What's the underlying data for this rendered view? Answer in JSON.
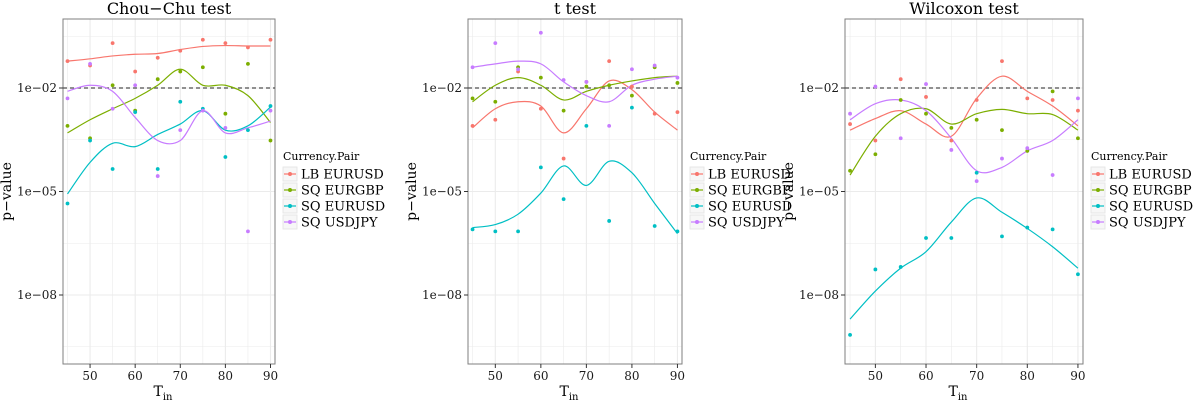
{
  "figure": {
    "background": "#ffffff",
    "panel_background": "#ffffff",
    "grid_color": "#ebebeb"
  },
  "chart_data": [
    {
      "type": "scatter",
      "title": "Chou−Chu test",
      "xlabel_main": "T",
      "xlabel_sub": "in",
      "ylabel": "p−value",
      "x_scale": "linear",
      "y_scale": "log10",
      "xlim": [
        44,
        91
      ],
      "ylim": [
        1e-10,
        1
      ],
      "x_ticks": [
        50,
        60,
        70,
        80,
        90
      ],
      "x_tick_labels": [
        "50",
        "60",
        "70",
        "80",
        "90"
      ],
      "y_ticks": [
        1e-08,
        1e-05,
        0.01
      ],
      "y_tick_labels": [
        "1e−08",
        "1e−05",
        "1e−02"
      ],
      "hline": 0.01,
      "grid": true,
      "legend_position": "right",
      "legend_title": "Currency.Pair",
      "series": [
        {
          "name": "LB EURUSD",
          "color": "#F8766D",
          "x": [
            45,
            50,
            55,
            60,
            65,
            70,
            75,
            80,
            85,
            90
          ],
          "points": [
            0.06,
            0.045,
            0.2,
            0.03,
            0.075,
            0.12,
            0.25,
            0.2,
            0.15,
            0.25
          ],
          "smooth": [
            0.06,
            0.07,
            0.085,
            0.095,
            0.1,
            0.13,
            0.16,
            0.17,
            0.165,
            0.165
          ]
        },
        {
          "name": "SQ EURGBP",
          "color": "#7CAE00",
          "x": [
            45,
            50,
            55,
            60,
            65,
            70,
            75,
            80,
            85,
            90
          ],
          "points": [
            0.0008,
            0.00035,
            0.012,
            0.0022,
            0.018,
            0.03,
            0.04,
            0.0018,
            0.05,
            0.0003
          ],
          "smooth": [
            0.0005,
            0.0012,
            0.0025,
            0.005,
            0.012,
            0.035,
            0.012,
            0.012,
            0.006,
            0.001
          ]
        },
        {
          "name": "SQ EURUSD",
          "color": "#00BFC4",
          "x": [
            45,
            50,
            55,
            60,
            65,
            70,
            75,
            80,
            85,
            90
          ],
          "points": [
            4.5e-06,
            0.0003,
            4.5e-05,
            0.002,
            4.5e-05,
            0.004,
            0.0025,
            0.0001,
            0.0006,
            0.003
          ],
          "smooth": [
            8.5e-06,
            7e-05,
            0.00025,
            0.0002,
            0.00045,
            0.0009,
            0.0022,
            0.0006,
            0.0008,
            0.0028
          ]
        },
        {
          "name": "SQ USDJPY",
          "color": "#C77CFF",
          "x": [
            45,
            50,
            55,
            60,
            65,
            70,
            75,
            80,
            85,
            90
          ],
          "points": [
            0.005,
            0.05,
            0.0025,
            0.012,
            2.8e-05,
            0.0006,
            0.0022,
            0.0007,
            7e-07,
            0.0022
          ],
          "smooth": [
            0.008,
            0.012,
            0.008,
            0.0014,
            0.0003,
            0.0003,
            0.0022,
            0.0005,
            0.0007,
            0.0011
          ]
        }
      ]
    },
    {
      "type": "scatter",
      "title": "t test",
      "xlabel_main": "T",
      "xlabel_sub": "in",
      "ylabel": "p−value",
      "x_scale": "linear",
      "y_scale": "log10",
      "xlim": [
        44,
        91
      ],
      "ylim": [
        1e-10,
        1
      ],
      "x_ticks": [
        50,
        60,
        70,
        80,
        90
      ],
      "x_tick_labels": [
        "50",
        "60",
        "70",
        "80",
        "90"
      ],
      "y_ticks": [
        1e-08,
        1e-05,
        0.01
      ],
      "y_tick_labels": [
        "1e−08",
        "1e−05",
        "1e−02"
      ],
      "hline": 0.01,
      "grid": true,
      "legend_position": "right",
      "legend_title": "Currency.Pair",
      "series": [
        {
          "name": "LB EURUSD",
          "color": "#F8766D",
          "x": [
            45,
            50,
            55,
            60,
            65,
            70,
            75,
            80,
            85,
            90
          ],
          "points": [
            0.0008,
            0.0012,
            0.03,
            0.0025,
            9e-05,
            0.015,
            0.06,
            0.011,
            0.0018,
            0.002
          ],
          "smooth": [
            0.0007,
            0.0025,
            0.004,
            0.003,
            0.0005,
            0.0025,
            0.016,
            0.009,
            0.002,
            0.0006
          ]
        },
        {
          "name": "SQ EURGBP",
          "color": "#7CAE00",
          "x": [
            45,
            50,
            55,
            60,
            65,
            70,
            75,
            80,
            85,
            90
          ],
          "points": [
            0.005,
            0.004,
            0.04,
            0.02,
            0.0022,
            0.011,
            0.012,
            0.006,
            0.04,
            0.014
          ],
          "smooth": [
            0.004,
            0.012,
            0.02,
            0.012,
            0.0045,
            0.008,
            0.012,
            0.016,
            0.02,
            0.022
          ]
        },
        {
          "name": "SQ EURUSD",
          "color": "#00BFC4",
          "x": [
            45,
            50,
            55,
            60,
            65,
            70,
            75,
            80,
            85,
            90
          ],
          "points": [
            8e-07,
            7e-07,
            7e-07,
            5e-05,
            6e-06,
            0.0008,
            1.4e-06,
            0.0027,
            1e-06,
            7e-07
          ],
          "smooth": [
            9e-07,
            1.1e-06,
            2.2e-06,
            9e-06,
            5.5e-05,
            1.5e-05,
            7.5e-05,
            3.5e-05,
            4.5e-06,
            6e-07
          ]
        },
        {
          "name": "SQ USDJPY",
          "color": "#C77CFF",
          "x": [
            45,
            50,
            55,
            60,
            65,
            70,
            75,
            80,
            85,
            90
          ],
          "points": [
            0.04,
            0.2,
            0.035,
            0.4,
            0.017,
            0.015,
            0.0008,
            0.035,
            0.045,
            0.02
          ],
          "smooth": [
            0.04,
            0.05,
            0.06,
            0.05,
            0.015,
            0.006,
            0.004,
            0.012,
            0.018,
            0.022
          ]
        }
      ]
    },
    {
      "type": "scatter",
      "title": "Wilcoxon test",
      "xlabel_main": "T",
      "xlabel_sub": "in",
      "ylabel": "p−value",
      "x_scale": "linear",
      "y_scale": "log10",
      "xlim": [
        44,
        91
      ],
      "ylim": [
        1e-10,
        1
      ],
      "x_ticks": [
        50,
        60,
        70,
        80,
        90
      ],
      "x_tick_labels": [
        "50",
        "60",
        "70",
        "80",
        "90"
      ],
      "y_ticks": [
        1e-08,
        1e-05,
        0.01
      ],
      "y_tick_labels": [
        "1e−08",
        "1e−05",
        "1e−02"
      ],
      "hline": 0.01,
      "grid": true,
      "legend_position": "right",
      "legend_title": "Currency.Pair",
      "series": [
        {
          "name": "LB EURUSD",
          "color": "#F8766D",
          "x": [
            45,
            50,
            55,
            60,
            65,
            70,
            75,
            80,
            85,
            90
          ],
          "points": [
            0.0009,
            0.0003,
            0.018,
            0.0055,
            0.0003,
            0.0045,
            0.06,
            0.005,
            0.0045,
            0.0022
          ],
          "smooth": [
            0.0006,
            0.0013,
            0.0022,
            0.0009,
            0.0004,
            0.005,
            0.022,
            0.008,
            0.003,
            0.0008
          ]
        },
        {
          "name": "SQ EURGBP",
          "color": "#7CAE00",
          "x": [
            45,
            50,
            55,
            60,
            65,
            70,
            75,
            80,
            85,
            90
          ],
          "points": [
            4e-05,
            0.00012,
            0.0045,
            0.0018,
            0.0007,
            0.0012,
            0.0006,
            0.00015,
            0.008,
            0.00035
          ],
          "smooth": [
            3e-05,
            0.0004,
            0.0018,
            0.0025,
            0.0009,
            0.0018,
            0.0024,
            0.0018,
            0.0017,
            0.0006
          ]
        },
        {
          "name": "SQ EURUSD",
          "color": "#00BFC4",
          "x": [
            45,
            50,
            55,
            60,
            65,
            70,
            75,
            80,
            85,
            90
          ],
          "points": [
            7e-10,
            5.5e-08,
            6.5e-08,
            4.5e-07,
            4.5e-07,
            3.5e-05,
            5e-07,
            9e-07,
            8e-07,
            4e-08
          ],
          "smooth": [
            2e-09,
            1.3e-08,
            6e-08,
            1.8e-07,
            1.3e-06,
            6.5e-06,
            2.5e-06,
            8.5e-07,
            2.5e-07,
            6e-08
          ]
        },
        {
          "name": "SQ USDJPY",
          "color": "#C77CFF",
          "x": [
            45,
            50,
            55,
            60,
            65,
            70,
            75,
            80,
            85,
            90
          ],
          "points": [
            0.0018,
            0.011,
            0.00035,
            0.013,
            0.00016,
            2e-05,
            9e-05,
            0.00018,
            3e-05,
            0.005
          ],
          "smooth": [
            0.0012,
            0.0035,
            0.0045,
            0.0022,
            0.00035,
            4e-05,
            5e-05,
            0.00015,
            0.0003,
            0.0012
          ]
        }
      ]
    }
  ]
}
